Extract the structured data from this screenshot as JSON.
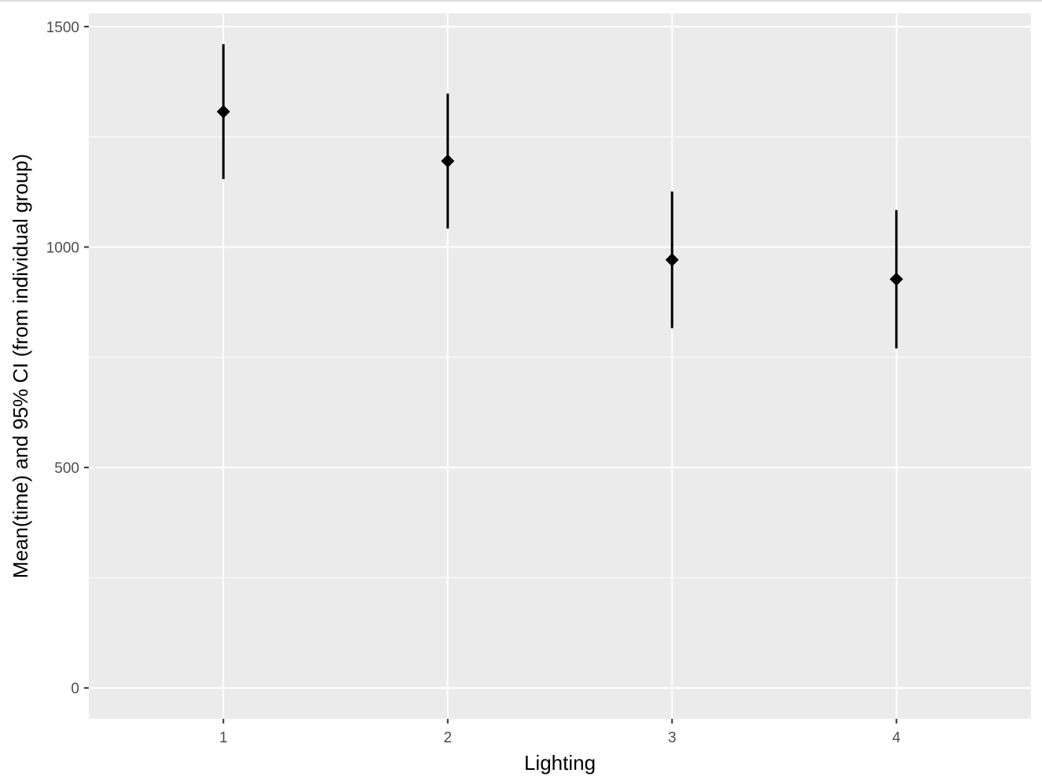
{
  "chart_data": {
    "type": "errorbar",
    "xlabel": "Lighting",
    "ylabel": "Mean(time) and 95% CI (from individual group)",
    "categories": [
      "1",
      "2",
      "3",
      "4"
    ],
    "points": [
      {
        "x": "1",
        "mean": 1307,
        "ci_low": 1154,
        "ci_high": 1460
      },
      {
        "x": "2",
        "mean": 1195,
        "ci_low": 1042,
        "ci_high": 1348
      },
      {
        "x": "3",
        "mean": 971,
        "ci_low": 816,
        "ci_high": 1126
      },
      {
        "x": "4",
        "mean": 927,
        "ci_low": 770,
        "ci_high": 1084
      }
    ],
    "yticks": [
      0,
      500,
      1000,
      1500
    ],
    "ylim": [
      -70,
      1530
    ],
    "xlim": [
      0.4,
      4.6
    ],
    "grid": true,
    "legend": "none",
    "colors": {
      "panel": "#ebebeb",
      "grid": "#ffffff",
      "marks": "#000000",
      "tick_text": "#4d4d4d",
      "tick_mark": "#333333"
    }
  }
}
